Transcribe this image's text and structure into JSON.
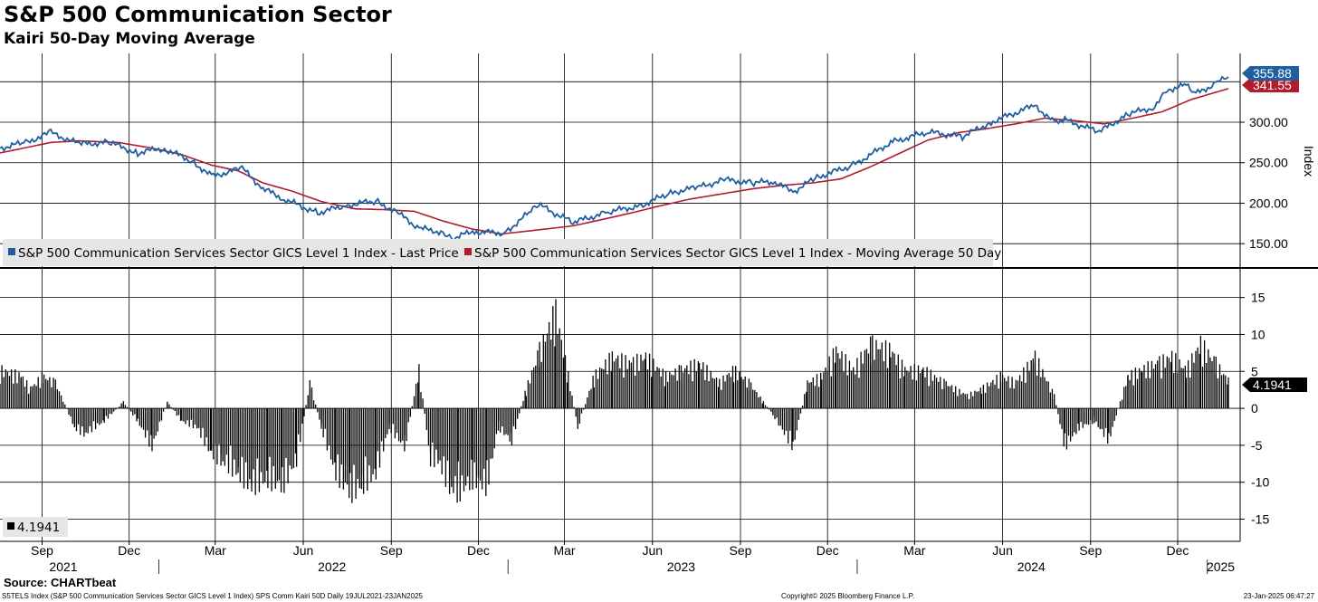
{
  "title": "S&P 500 Communication Sector",
  "subtitle": "Kairi 50-Day Moving Average",
  "source": "Source: CHARTbeat",
  "footer": {
    "left": "S5TELS Index (S&P 500 Communication Services Sector GICS Level 1 Index) SPS Comm Kairi 50D  Daily 19JUL2021-23JAN2025",
    "center": "Copyright© 2025 Bloomberg Finance L.P.",
    "right": "23-Jan-2025 06:47:27"
  },
  "colors": {
    "price": "#1f5fa0",
    "ma": "#b01c2e",
    "histogram": "#000000",
    "grid": "#000000"
  },
  "chart_data": [
    {
      "type": "line",
      "ylabel": "Index",
      "ylim": [
        120,
        385
      ],
      "yticks": [
        "150.00",
        "200.00",
        "250.00",
        "300.00"
      ],
      "legend": [
        "S&P 500 Communication Services Sector GICS Level 1 Index - Last Price",
        "S&P 500 Communication Services Sector GICS Level 1 Index - Moving Average 50 Day"
      ],
      "last_values": {
        "price": "355.88",
        "ma": "341.55"
      },
      "series": [
        {
          "key": "price",
          "x": [
            "2021-07-19",
            "2021-08-15",
            "2021-09-10",
            "2021-10-10",
            "2021-11-10",
            "2021-12-10",
            "2022-01-05",
            "2022-02-05",
            "2022-02-25",
            "2022-03-29",
            "2022-04-20",
            "2022-05-12",
            "2022-06-16",
            "2022-07-15",
            "2022-08-16",
            "2022-09-10",
            "2022-09-30",
            "2022-10-25",
            "2022-11-03",
            "2022-11-25",
            "2022-12-28",
            "2023-01-25",
            "2023-02-02",
            "2023-03-10",
            "2023-04-15",
            "2023-05-20",
            "2023-06-20",
            "2023-07-20",
            "2023-08-15",
            "2023-09-15",
            "2023-10-05",
            "2023-10-26",
            "2023-11-20",
            "2023-12-28",
            "2024-02-05",
            "2024-03-15",
            "2024-04-20",
            "2024-05-20",
            "2024-07-05",
            "2024-07-25",
            "2024-08-05",
            "2024-09-10",
            "2024-10-10",
            "2024-11-05",
            "2024-11-20",
            "2024-12-10",
            "2024-12-20",
            "2025-01-10",
            "2025-01-23"
          ],
          "y": [
            268,
            275,
            287,
            273,
            275,
            262,
            268,
            252,
            233,
            243,
            218,
            205,
            188,
            197,
            203,
            186,
            169,
            164,
            156,
            165,
            163,
            190,
            198,
            176,
            189,
            197,
            213,
            220,
            229,
            225,
            227,
            214,
            232,
            247,
            275,
            288,
            282,
            300,
            321,
            299,
            303,
            288,
            310,
            318,
            340,
            346,
            335,
            348,
            355.88
          ]
        },
        {
          "key": "ma",
          "x": [
            "2021-07-19",
            "2021-09-10",
            "2021-10-10",
            "2021-11-20",
            "2021-12-25",
            "2022-01-25",
            "2022-02-25",
            "2022-03-25",
            "2022-04-20",
            "2022-05-20",
            "2022-06-20",
            "2022-07-25",
            "2022-08-25",
            "2022-09-25",
            "2022-10-25",
            "2022-11-25",
            "2022-12-25",
            "2023-01-25",
            "2023-03-10",
            "2023-04-10",
            "2023-05-10",
            "2023-06-10",
            "2023-07-10",
            "2023-08-15",
            "2023-09-15",
            "2023-10-15",
            "2023-11-15",
            "2023-12-15",
            "2024-01-15",
            "2024-02-15",
            "2024-03-15",
            "2024-04-15",
            "2024-05-15",
            "2024-06-15",
            "2024-07-15",
            "2024-08-15",
            "2024-09-15",
            "2024-10-15",
            "2024-11-15",
            "2024-12-15",
            "2025-01-23"
          ],
          "y": [
            262,
            275,
            277,
            275,
            268,
            260,
            247,
            240,
            225,
            215,
            202,
            193,
            192,
            190,
            178,
            168,
            162,
            166,
            172,
            180,
            188,
            197,
            205,
            212,
            218,
            222,
            225,
            230,
            245,
            262,
            278,
            287,
            292,
            298,
            305,
            302,
            298,
            305,
            313,
            328,
            341.55
          ]
        }
      ]
    },
    {
      "type": "bar",
      "ylim": [
        -18,
        19
      ],
      "yticks": [
        "-15",
        "-10",
        "-5",
        "0",
        "5",
        "10",
        "15"
      ],
      "legend": [
        "4.1941"
      ],
      "last_value": "4.1941",
      "x": [
        "2021-07-19",
        "2021-08-10",
        "2021-08-20",
        "2021-09-01",
        "2021-09-15",
        "2021-10-05",
        "2021-10-15",
        "2021-11-05",
        "2021-11-25",
        "2021-12-10",
        "2021-12-25",
        "2022-01-10",
        "2022-01-25",
        "2022-02-10",
        "2022-02-25",
        "2022-03-07",
        "2022-03-25",
        "2022-04-08",
        "2022-04-25",
        "2022-05-10",
        "2022-05-25",
        "2022-06-08",
        "2022-06-20",
        "2022-07-05",
        "2022-07-20",
        "2022-08-01",
        "2022-08-16",
        "2022-08-30",
        "2022-09-15",
        "2022-09-30",
        "2022-10-12",
        "2022-10-20",
        "2022-11-01",
        "2022-11-10",
        "2022-11-25",
        "2022-12-10",
        "2022-12-22",
        "2023-01-05",
        "2023-01-20",
        "2023-02-03",
        "2023-02-20",
        "2023-03-05",
        "2023-03-15",
        "2023-04-01",
        "2023-04-20",
        "2023-05-10",
        "2023-05-25",
        "2023-06-15",
        "2023-07-01",
        "2023-07-20",
        "2023-08-10",
        "2023-08-25",
        "2023-09-10",
        "2023-09-25",
        "2023-10-05",
        "2023-10-26",
        "2023-11-10",
        "2023-11-25",
        "2023-12-10",
        "2023-12-28",
        "2024-01-15",
        "2024-02-05",
        "2024-02-20",
        "2024-03-10",
        "2024-04-01",
        "2024-04-25",
        "2024-05-10",
        "2024-05-30",
        "2024-06-15",
        "2024-07-05",
        "2024-07-25",
        "2024-08-05",
        "2024-08-20",
        "2024-09-05",
        "2024-09-20",
        "2024-10-10",
        "2024-10-25",
        "2024-11-10",
        "2024-11-25",
        "2024-12-10",
        "2024-12-25",
        "2025-01-10",
        "2025-01-23"
      ],
      "values": [
        6,
        5,
        3,
        5,
        4,
        -3,
        -4,
        -2,
        1,
        -2,
        -6,
        1,
        -2,
        -3,
        -7,
        -8,
        -10,
        -12,
        -11,
        -12,
        -8,
        4,
        -3,
        -10,
        -13,
        -12,
        -10,
        -3,
        -6,
        6,
        -8,
        -8,
        -12,
        -13,
        -11,
        -12,
        -3,
        -5,
        3,
        9,
        15,
        5,
        -3,
        5,
        8,
        7,
        8,
        5,
        6,
        7,
        4,
        6,
        4,
        1,
        -1,
        -6,
        4,
        5,
        9,
        6,
        10,
        9,
        6,
        6,
        4,
        2,
        3,
        5,
        4,
        8,
        2,
        -6,
        -3,
        -2,
        -5,
        5,
        6,
        7,
        8,
        6,
        10,
        7,
        4.1941
      ]
    }
  ],
  "x_axis": {
    "months": [
      {
        "label": "Sep",
        "date": "2021-09-01"
      },
      {
        "label": "Dec",
        "date": "2021-12-01"
      },
      {
        "label": "Mar",
        "date": "2022-03-01"
      },
      {
        "label": "Jun",
        "date": "2022-06-01"
      },
      {
        "label": "Sep",
        "date": "2022-09-01"
      },
      {
        "label": "Dec",
        "date": "2022-12-01"
      },
      {
        "label": "Mar",
        "date": "2023-03-01"
      },
      {
        "label": "Jun",
        "date": "2023-06-01"
      },
      {
        "label": "Sep",
        "date": "2023-09-01"
      },
      {
        "label": "Dec",
        "date": "2023-12-01"
      },
      {
        "label": "Mar",
        "date": "2024-03-01"
      },
      {
        "label": "Jun",
        "date": "2024-06-01"
      },
      {
        "label": "Sep",
        "date": "2024-09-01"
      },
      {
        "label": "Dec",
        "date": "2024-12-01"
      }
    ],
    "years": [
      {
        "label": "2021",
        "date": "2021-07-19"
      },
      {
        "label": "2022",
        "date": "2022-07-01"
      },
      {
        "label": "2023",
        "date": "2023-07-01"
      },
      {
        "label": "2024",
        "date": "2024-07-01"
      },
      {
        "label": "2025",
        "date": "2025-01-15"
      }
    ],
    "year_dividers": [
      "2022-01-01",
      "2023-01-01",
      "2024-01-01",
      "2025-01-01"
    ]
  }
}
